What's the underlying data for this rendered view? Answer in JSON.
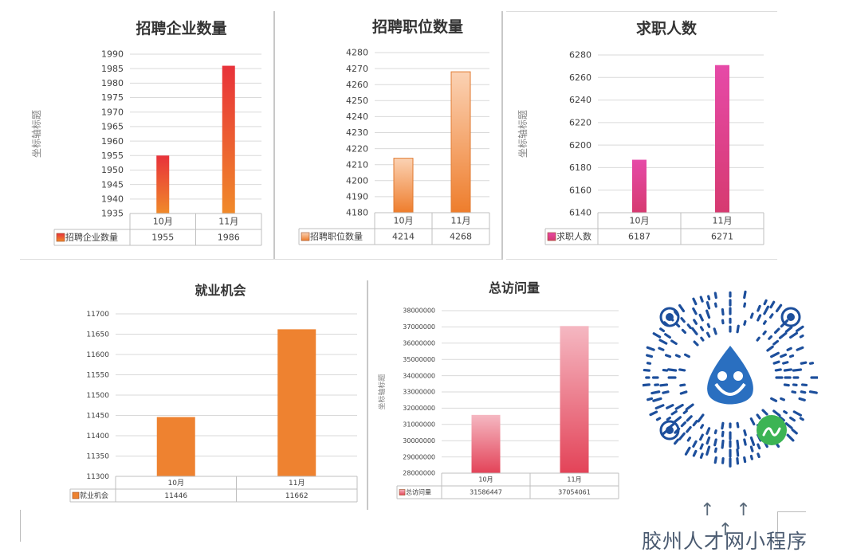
{
  "chart_data": [
    {
      "type": "bar",
      "title": "招聘企业数量",
      "ylabel": "坐标轴标题",
      "categories": [
        "10月",
        "11月"
      ],
      "series": [
        {
          "name": "招聘企业数量",
          "values": [
            1955,
            1986
          ]
        }
      ],
      "ylim": [
        1935,
        1990
      ],
      "yticks": [
        1935,
        1940,
        1945,
        1950,
        1955,
        1960,
        1965,
        1970,
        1975,
        1980,
        1985,
        1990
      ],
      "table_values": [
        "1955",
        "1986"
      ],
      "colors": {
        "top": "#e8323a",
        "bottom": "#f08a2a"
      },
      "grid": true
    },
    {
      "type": "bar",
      "title": "招聘职位数量",
      "ylabel": "",
      "categories": [
        "10月",
        "11月"
      ],
      "series": [
        {
          "name": "招聘职位数量",
          "values": [
            4214,
            4268
          ]
        }
      ],
      "ylim": [
        4180,
        4280
      ],
      "yticks": [
        4180,
        4190,
        4200,
        4210,
        4220,
        4230,
        4240,
        4250,
        4260,
        4270,
        4280
      ],
      "table_values": [
        "4214",
        "4268"
      ],
      "colors": {
        "top": "#fbd2b4",
        "bottom": "#ee7d2c"
      },
      "grid": true
    },
    {
      "type": "bar",
      "title": "求职人数",
      "ylabel": "坐标轴标题",
      "categories": [
        "10月",
        "11月"
      ],
      "series": [
        {
          "name": "求职人数",
          "values": [
            6187,
            6271
          ]
        }
      ],
      "ylim": [
        6140,
        6280
      ],
      "yticks": [
        6140,
        6160,
        6180,
        6200,
        6220,
        6240,
        6260,
        6280
      ],
      "table_values": [
        "6187",
        "6271"
      ],
      "colors": {
        "top": "#e64aa8",
        "bottom": "#d63a70"
      },
      "grid": true
    },
    {
      "type": "bar",
      "title": "就业机会",
      "ylabel": "",
      "categories": [
        "10月",
        "11月"
      ],
      "series": [
        {
          "name": "就业机会",
          "values": [
            11446,
            11662
          ]
        }
      ],
      "ylim": [
        11300,
        11700
      ],
      "yticks": [
        11300,
        11350,
        11400,
        11450,
        11500,
        11550,
        11600,
        11650,
        11700
      ],
      "table_values": [
        "11446",
        "11662"
      ],
      "colors": {
        "top": "#ee8230",
        "bottom": "#ee8230"
      },
      "grid": true
    },
    {
      "type": "bar",
      "title": "总访问量",
      "ylabel": "坐标轴标题",
      "categories": [
        "10月",
        "11月"
      ],
      "series": [
        {
          "name": "总访问量",
          "values": [
            31586447,
            37054061
          ]
        }
      ],
      "ylim": [
        28000000,
        38000000
      ],
      "yticks": [
        28000000,
        29000000,
        30000000,
        31000000,
        32000000,
        33000000,
        34000000,
        35000000,
        36000000,
        37000000,
        38000000
      ],
      "table_values": [
        "31586447",
        "37054061"
      ],
      "colors": {
        "top": "#f5b8c2",
        "bottom": "#e34358"
      },
      "grid": true
    }
  ],
  "footer": {
    "arrows": "↑ ↑ ↑",
    "caption": "胶州人才网小程序"
  },
  "qr": {
    "icon": "mini-program-qr-code-icon",
    "brand_color": "#1d4f9c",
    "badge_color": "#3cb454"
  }
}
